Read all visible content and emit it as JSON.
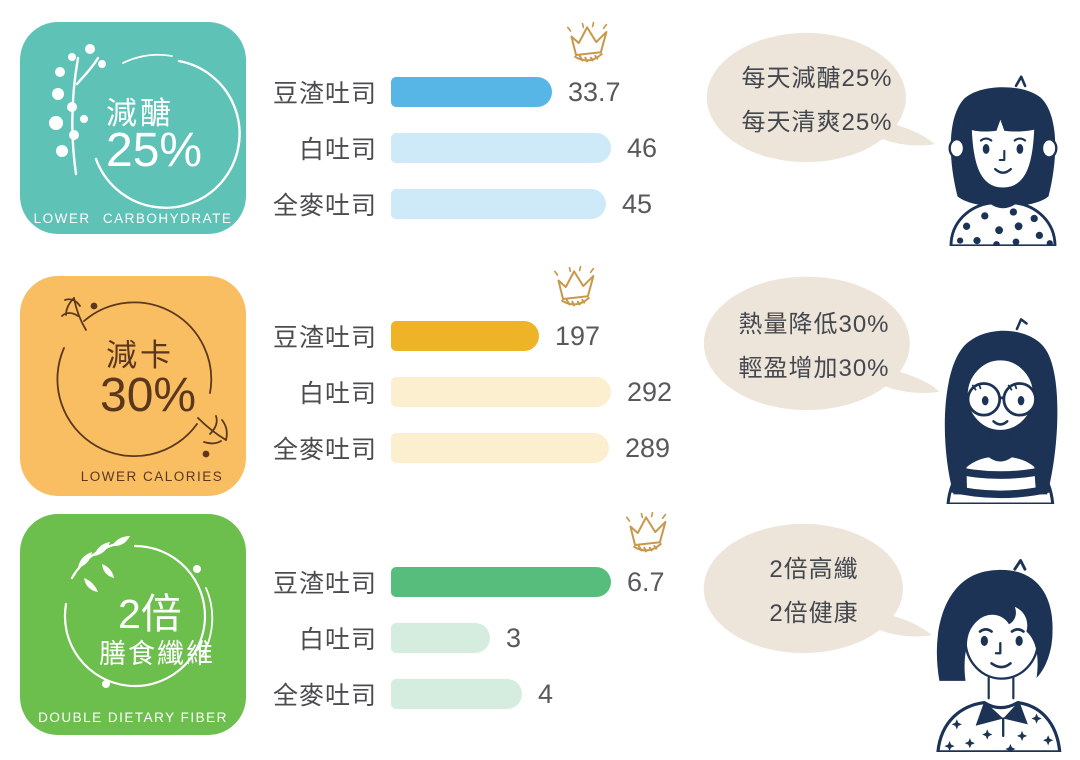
{
  "colors": {
    "badge_teal": "#5EC2B7",
    "badge_orange": "#F9BE62",
    "badge_green": "#6CBE4D",
    "badge_orange_text": "#5B371E",
    "bubble_bg": "#EDE5DA",
    "ink_navy": "#1C3355",
    "crown_gold": "#C8984C",
    "label_gray": "#4B4C4E"
  },
  "sections": [
    {
      "badge": {
        "line1": "減醣",
        "line2": "25%",
        "caption": "LOWER CARBOHYDRATE"
      },
      "bubble": {
        "line1": "每天減醣25%",
        "line2": "每天清爽25%"
      },
      "character": "girl-bob-haircut-polka-dot-top"
    },
    {
      "badge": {
        "line1": "減卡",
        "line2": "30%",
        "caption": "LOWER CALORIES"
      },
      "bubble": {
        "line1": "熱量降低30%",
        "line2": "輕盈增加30%"
      },
      "character": "girl-long-hair-glasses-striped-top"
    },
    {
      "badge": {
        "line1": "2倍",
        "line2": "膳食纖維",
        "caption": "DOUBLE DIETARY FIBER"
      },
      "bubble": {
        "line1": "2倍高纖",
        "line2": "2倍健康"
      },
      "character": "girl-short-hair-star-blouse"
    }
  ],
  "chart_data": [
    {
      "type": "bar",
      "orientation": "horizontal",
      "categories": [
        "豆渣吐司",
        "白吐司",
        "全麥吐司"
      ],
      "values": [
        33.7,
        46,
        45
      ],
      "value_labels": [
        "33.7",
        "46",
        "45"
      ],
      "highlight_index": 0,
      "crown_index": 0,
      "colors": {
        "highlight": "#58B6E6",
        "normal": "#CEE9F7"
      },
      "xlim": [
        0,
        46
      ],
      "grid": false,
      "value_label_position": "end-of-bar"
    },
    {
      "type": "bar",
      "orientation": "horizontal",
      "categories": [
        "豆渣吐司",
        "白吐司",
        "全麥吐司"
      ],
      "values": [
        197,
        292,
        289
      ],
      "value_labels": [
        "197",
        "292",
        "289"
      ],
      "highlight_index": 0,
      "crown_index": 0,
      "colors": {
        "highlight": "#EFB327",
        "normal": "#FCEFCF"
      },
      "xlim": [
        0,
        292
      ],
      "grid": false,
      "value_label_position": "end-of-bar"
    },
    {
      "type": "bar",
      "orientation": "horizontal",
      "categories": [
        "豆渣吐司",
        "白吐司",
        "全麥吐司"
      ],
      "values": [
        6.7,
        3,
        4
      ],
      "value_labels": [
        "6.7",
        "3",
        "4"
      ],
      "highlight_index": 0,
      "crown_index": 0,
      "colors": {
        "highlight": "#57BD7D",
        "normal": "#D5EDDE"
      },
      "xlim": [
        0,
        6.7
      ],
      "grid": false,
      "value_label_position": "end-of-bar"
    }
  ]
}
